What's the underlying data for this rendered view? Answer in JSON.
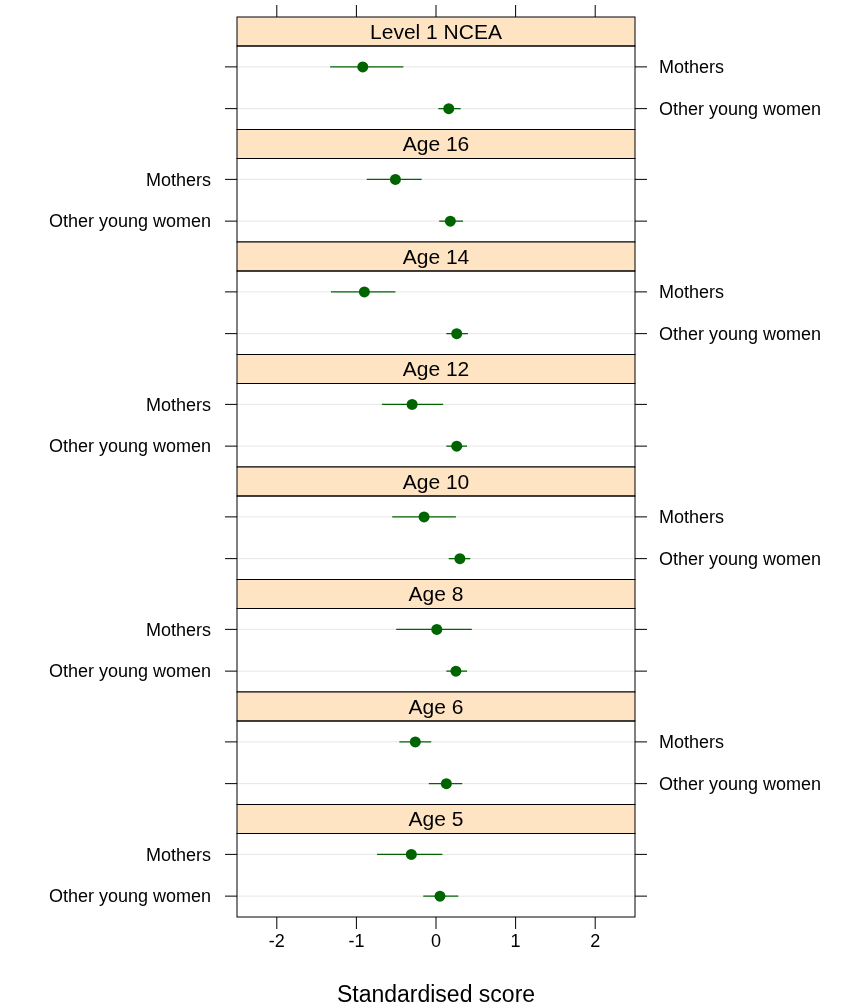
{
  "chart_data": [
    {
      "type": "scatter",
      "title": "Level 1 NCEA",
      "orientation": "horizontal",
      "categories": [
        "Mothers",
        "Other young women"
      ],
      "series": [
        {
          "color": "#006400",
          "values": [
            -0.92,
            0.16
          ],
          "errors": [
            [
              -1.33,
              -0.41
            ],
            [
              0.03,
              0.31
            ]
          ]
        }
      ],
      "xlim": [
        -2.5,
        2.5
      ],
      "xticks": [
        {
          "value": -2,
          "label": null
        },
        {
          "value": -1,
          "label": null
        },
        {
          "value": 0,
          "label": null
        },
        {
          "value": 1,
          "label": null
        },
        {
          "value": 2,
          "label": null
        }
      ],
      "tick_labels": "y",
      "grid": "y",
      "marker": "circle"
    },
    {
      "type": "scatter",
      "title": "Age 16",
      "orientation": "horizontal",
      "categories": [
        "Mothers",
        "Other young women"
      ],
      "series": [
        {
          "color": "#006400",
          "values": [
            -0.51,
            0.18
          ],
          "errors": [
            [
              -0.87,
              -0.18
            ],
            [
              0.04,
              0.34
            ]
          ]
        }
      ],
      "xlim": [
        -2.5,
        2.5
      ],
      "tick_labels": "y",
      "grid": "y",
      "marker": "circle"
    },
    {
      "type": "scatter",
      "title": "Age 14",
      "orientation": "horizontal",
      "categories": [
        "Mothers",
        "Other young women"
      ],
      "series": [
        {
          "color": "#006400",
          "values": [
            -0.9,
            0.26
          ],
          "errors": [
            [
              -1.32,
              -0.51
            ],
            [
              0.13,
              0.4
            ]
          ]
        }
      ],
      "xlim": [
        -2.5,
        2.5
      ],
      "tick_labels": "y",
      "grid": "y",
      "marker": "circle"
    },
    {
      "type": "scatter",
      "title": "Age 12",
      "orientation": "horizontal",
      "categories": [
        "Mothers",
        "Other young women"
      ],
      "series": [
        {
          "color": "#006400",
          "values": [
            -0.3,
            0.26
          ],
          "errors": [
            [
              -0.68,
              0.09
            ],
            [
              0.13,
              0.39
            ]
          ]
        }
      ],
      "xlim": [
        -2.5,
        2.5
      ],
      "tick_labels": "y",
      "grid": "y",
      "marker": "circle"
    },
    {
      "type": "scatter",
      "title": "Age 10",
      "orientation": "horizontal",
      "categories": [
        "Mothers",
        "Other young women"
      ],
      "series": [
        {
          "color": "#006400",
          "values": [
            -0.15,
            0.3
          ],
          "errors": [
            [
              -0.55,
              0.25
            ],
            [
              0.16,
              0.43
            ]
          ]
        }
      ],
      "xlim": [
        -2.5,
        2.5
      ],
      "tick_labels": "y",
      "grid": "y",
      "marker": "circle"
    },
    {
      "type": "scatter",
      "title": "Age 8",
      "orientation": "horizontal",
      "categories": [
        "Mothers",
        "Other young women"
      ],
      "series": [
        {
          "color": "#006400",
          "values": [
            0.01,
            0.25
          ],
          "errors": [
            [
              -0.5,
              0.45
            ],
            [
              0.13,
              0.39
            ]
          ]
        }
      ],
      "xlim": [
        -2.5,
        2.5
      ],
      "tick_labels": "y",
      "grid": "y",
      "marker": "circle"
    },
    {
      "type": "scatter",
      "title": "Age 6",
      "orientation": "horizontal",
      "categories": [
        "Mothers",
        "Other young women"
      ],
      "series": [
        {
          "color": "#006400",
          "values": [
            -0.26,
            0.13
          ],
          "errors": [
            [
              -0.46,
              -0.06
            ],
            [
              -0.09,
              0.33
            ]
          ]
        }
      ],
      "xlim": [
        -2.5,
        2.5
      ],
      "tick_labels": "y",
      "grid": "y",
      "marker": "circle"
    },
    {
      "type": "scatter",
      "title": "Age 5",
      "xlabel": "Standardised score",
      "orientation": "horizontal",
      "categories": [
        "Mothers",
        "Other young women"
      ],
      "series": [
        {
          "color": "#006400",
          "values": [
            -0.31,
            0.05
          ],
          "errors": [
            [
              -0.74,
              0.08
            ],
            [
              -0.16,
              0.28
            ]
          ]
        }
      ],
      "xlim": [
        -2.5,
        2.5
      ],
      "xticks": [
        -2,
        -1,
        0,
        1,
        2
      ],
      "grid": "y",
      "marker": "circle"
    }
  ]
}
